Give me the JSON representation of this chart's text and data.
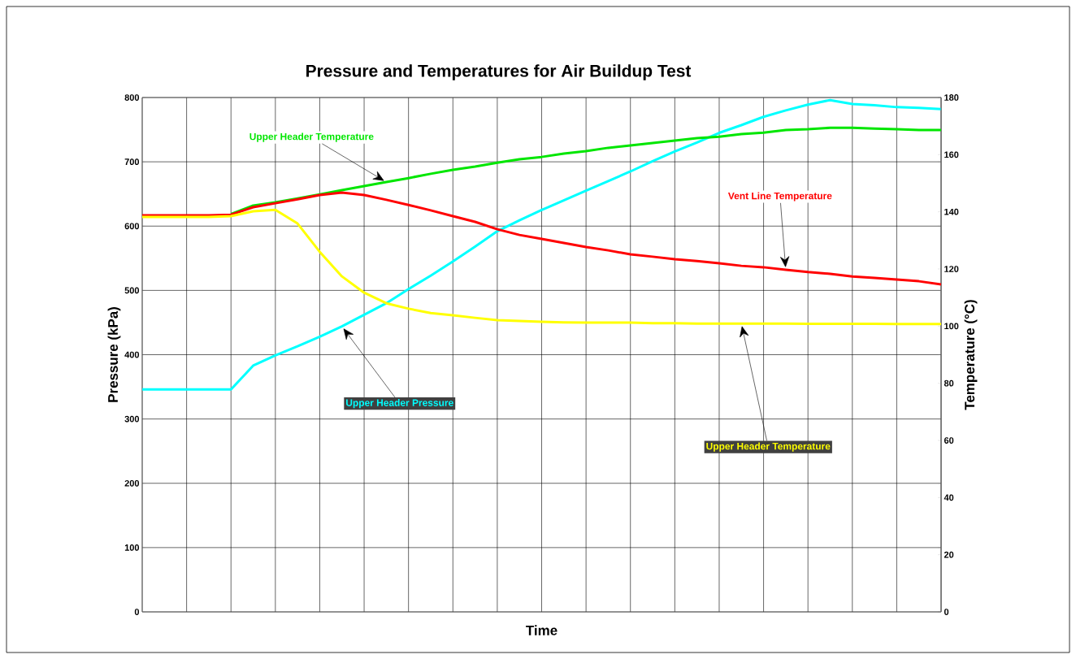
{
  "chart_data": {
    "type": "line",
    "title": "Pressure and Temperatures for Air Buildup Test",
    "xlabel": "Time",
    "ylabel": "Pressure (kPa)",
    "y2label": "Temperature (°C)",
    "categories": [
      null,
      null,
      null,
      null,
      null,
      null,
      null,
      null,
      null,
      null,
      null,
      null,
      null,
      null,
      null,
      null,
      null,
      null,
      null,
      null,
      null,
      null,
      null,
      null,
      null,
      null,
      null,
      null,
      null,
      null,
      null,
      null,
      null,
      null,
      null,
      null,
      null
    ],
    "series": [
      {
        "name": "Upper Header Pressure",
        "color": "#00ffff",
        "axis": "y",
        "values": [
          346,
          346,
          346,
          346,
          346,
          383,
          399,
          413,
          428,
          444,
          462,
          480,
          502,
          523,
          545,
          568,
          592,
          609,
          625,
          640,
          655,
          670,
          685,
          701,
          716,
          730,
          745,
          757,
          770,
          780,
          789,
          796,
          790,
          788,
          785,
          784,
          782
        ]
      },
      {
        "name": "Upper Header Temperature",
        "color": "#00e600",
        "axis": "y2",
        "values": [
          null,
          null,
          null,
          null,
          139.2,
          142.2,
          143.3,
          144.7,
          146.1,
          147.6,
          149,
          150.4,
          151.8,
          153.3,
          154.7,
          155.8,
          157.2,
          158.4,
          159.2,
          160.4,
          161.2,
          162.4,
          163.2,
          164.1,
          164.9,
          165.8,
          166.3,
          167.2,
          167.7,
          168.6,
          168.9,
          169.4,
          169.4,
          169.1,
          168.9,
          168.6,
          168.6
        ]
      },
      {
        "name": "Vent Line Temperature",
        "color": "#ff0000",
        "axis": "y2",
        "values": [
          138.8,
          138.8,
          138.8,
          138.8,
          139,
          141.6,
          143,
          144.4,
          145.9,
          146.7,
          145.9,
          144.2,
          142.4,
          140.5,
          138.5,
          136.5,
          133.9,
          131.9,
          130.5,
          129.1,
          127.7,
          126.5,
          125.1,
          124.3,
          123.4,
          122.8,
          122,
          121.1,
          120.6,
          119.7,
          118.9,
          118.3,
          117.4,
          116.9,
          116.3,
          115.7,
          114.6
        ]
      },
      {
        "name": "Upper Header Temperature",
        "color": "#ffff00",
        "axis": "y2",
        "values": [
          138.2,
          138.2,
          138.2,
          138.2,
          138.5,
          140.2,
          140.7,
          135.9,
          126,
          117.4,
          111.7,
          108,
          106.1,
          104.6,
          103.8,
          102.9,
          102.1,
          101.8,
          101.5,
          101.3,
          101.2,
          101.2,
          101.2,
          101,
          101,
          100.9,
          100.9,
          100.9,
          100.9,
          100.9,
          100.8,
          100.8,
          100.8,
          100.8,
          100.7,
          100.7,
          100.7
        ]
      }
    ],
    "ylim": [
      0,
      800
    ],
    "yticks": [
      0,
      100,
      200,
      300,
      400,
      500,
      600,
      700,
      800
    ],
    "y2lim": [
      0,
      180
    ],
    "y2ticks": [
      0,
      20,
      40,
      60,
      80,
      100,
      120,
      140,
      160,
      180
    ],
    "grid": true,
    "tick_labels": "y"
  }
}
